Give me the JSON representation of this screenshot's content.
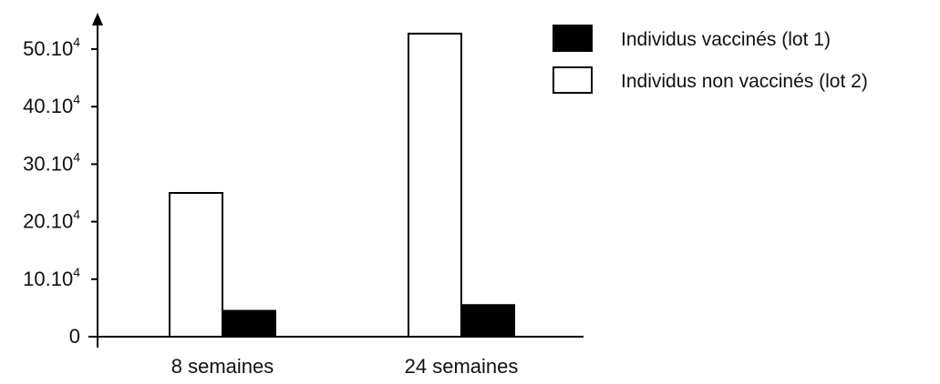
{
  "chart_data": {
    "type": "bar",
    "title": "",
    "xlabel": "",
    "ylabel": "",
    "categories": [
      "8 semaines",
      "24 semaines"
    ],
    "series": [
      {
        "name": "Individus non vaccinés (lot 2)",
        "values": [
          250000,
          527000
        ],
        "color": "#ffffff"
      },
      {
        "name": "Individus vaccinés (lot 1)",
        "values": [
          45000,
          55000
        ],
        "color": "#000000"
      }
    ],
    "ylim": [
      0,
      570000
    ],
    "y_ticks": [
      {
        "value": 0,
        "base": "0",
        "exp": ""
      },
      {
        "value": 100000,
        "base": "10.10",
        "exp": "4"
      },
      {
        "value": 200000,
        "base": "20.10",
        "exp": "4"
      },
      {
        "value": 300000,
        "base": "30.10",
        "exp": "4"
      },
      {
        "value": 400000,
        "base": "40.10",
        "exp": "4"
      },
      {
        "value": 500000,
        "base": "50.10",
        "exp": "4"
      }
    ],
    "legend": {
      "position": "top-right",
      "entries": [
        {
          "label": "Individus vaccinés (lot 1)",
          "color": "#000000"
        },
        {
          "label": "Individus non vaccinés (lot 2)",
          "color": "#ffffff"
        }
      ]
    },
    "grid": false
  }
}
